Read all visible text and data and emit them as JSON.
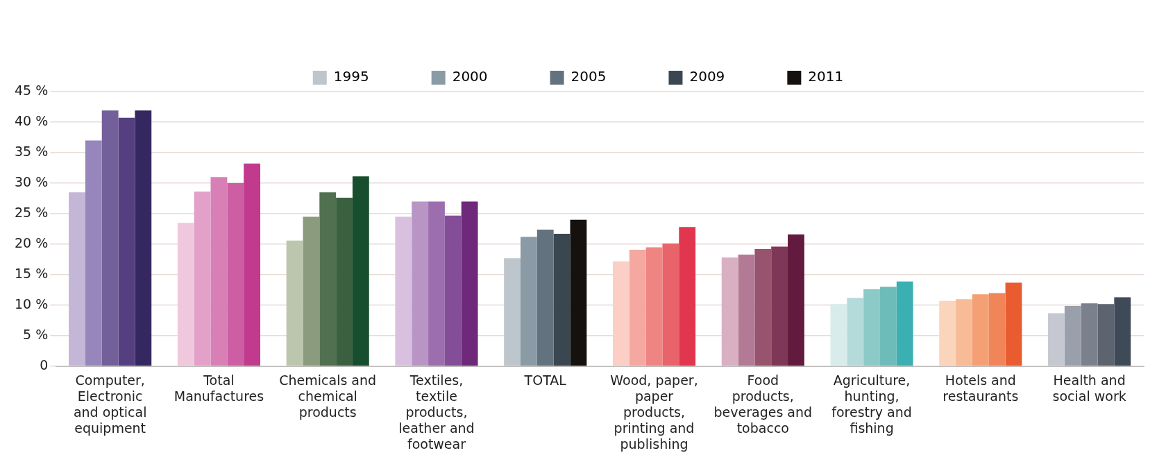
{
  "chart_data": {
    "type": "bar",
    "categories": [
      "Computer, Electronic and optical equipment",
      "Total Manufactures",
      "Chemicals and chemical products",
      "Textiles, textile products, leather and footwear",
      "TOTAL",
      "Wood, paper, paper products, printing and publishing",
      "Food products, beverages and tobacco",
      "Agriculture, hunting, forestry and fishing",
      "Hotels and restaurants",
      "Health and social work"
    ],
    "series": [
      {
        "name": "1995",
        "color": "#bcc6cc",
        "colors": [
          "#c3b6d6",
          "#f0c8de",
          "#bcc6ad",
          "#d9c0de",
          "#bcc6cc",
          "#fbcfc6",
          "#d8b0c2",
          "#d7eceb",
          "#fbd4bc",
          "#c5c8d0"
        ],
        "values": [
          28.5,
          23.5,
          20.6,
          24.5,
          17.7,
          17.2,
          17.8,
          10.2,
          10.7,
          8.7
        ]
      },
      {
        "name": "2000",
        "color": "#8a9ba6",
        "colors": [
          "#9686bb",
          "#e3a0c8",
          "#8a9b7e",
          "#b895c5",
          "#8a9ba6",
          "#f5a8a0",
          "#b37a95",
          "#b4dbd9",
          "#f8bb98",
          "#9aa0ab"
        ],
        "values": [
          37.0,
          28.6,
          24.5,
          27.0,
          21.2,
          19.1,
          18.3,
          11.2,
          11.0,
          9.9
        ]
      },
      {
        "name": "2005",
        "color": "#62727e",
        "colors": [
          "#73609b",
          "#d87fb5",
          "#50704f",
          "#9d6eae",
          "#62727e",
          "#ef8582",
          "#98546f",
          "#8ccac7",
          "#f49f74",
          "#7a808c"
        ],
        "values": [
          41.9,
          31.0,
          28.5,
          27.0,
          22.4,
          19.5,
          19.2,
          12.6,
          11.8,
          10.3
        ]
      },
      {
        "name": "2009",
        "color": "#3a4650",
        "colors": [
          "#553f80",
          "#cd5ea3",
          "#3a6040",
          "#844d97",
          "#3a4650",
          "#e9636b",
          "#7f3758",
          "#6dbcba",
          "#ef8558",
          "#5c6470"
        ],
        "values": [
          40.7,
          30.0,
          27.6,
          24.7,
          21.7,
          20.1,
          19.6,
          13.0,
          12.0,
          10.2
        ]
      },
      {
        "name": "2011",
        "color": "#15110e",
        "colors": [
          "#35275f",
          "#c23a8e",
          "#174f2e",
          "#6f297b",
          "#15110e",
          "#e2354e",
          "#621a3e",
          "#3bb0b3",
          "#e95c30",
          "#3e4a58"
        ],
        "values": [
          41.9,
          33.2,
          31.1,
          27.0,
          24.0,
          22.8,
          21.6,
          13.9,
          13.7,
          11.3
        ]
      }
    ],
    "ylim": [
      0,
      45
    ],
    "yticks": [
      {
        "value": 0,
        "label": "0"
      },
      {
        "value": 5,
        "label": "5 %"
      },
      {
        "value": 10,
        "label": "10 %"
      },
      {
        "value": 15,
        "label": "15 %"
      },
      {
        "value": 20,
        "label": "20 %"
      },
      {
        "value": 25,
        "label": "25 %"
      },
      {
        "value": 30,
        "label": "30 %"
      },
      {
        "value": 35,
        "label": "35 %"
      },
      {
        "value": 40,
        "label": "40 %"
      },
      {
        "value": 45,
        "label": "45 %"
      }
    ],
    "grid": "y",
    "legend": "top"
  }
}
